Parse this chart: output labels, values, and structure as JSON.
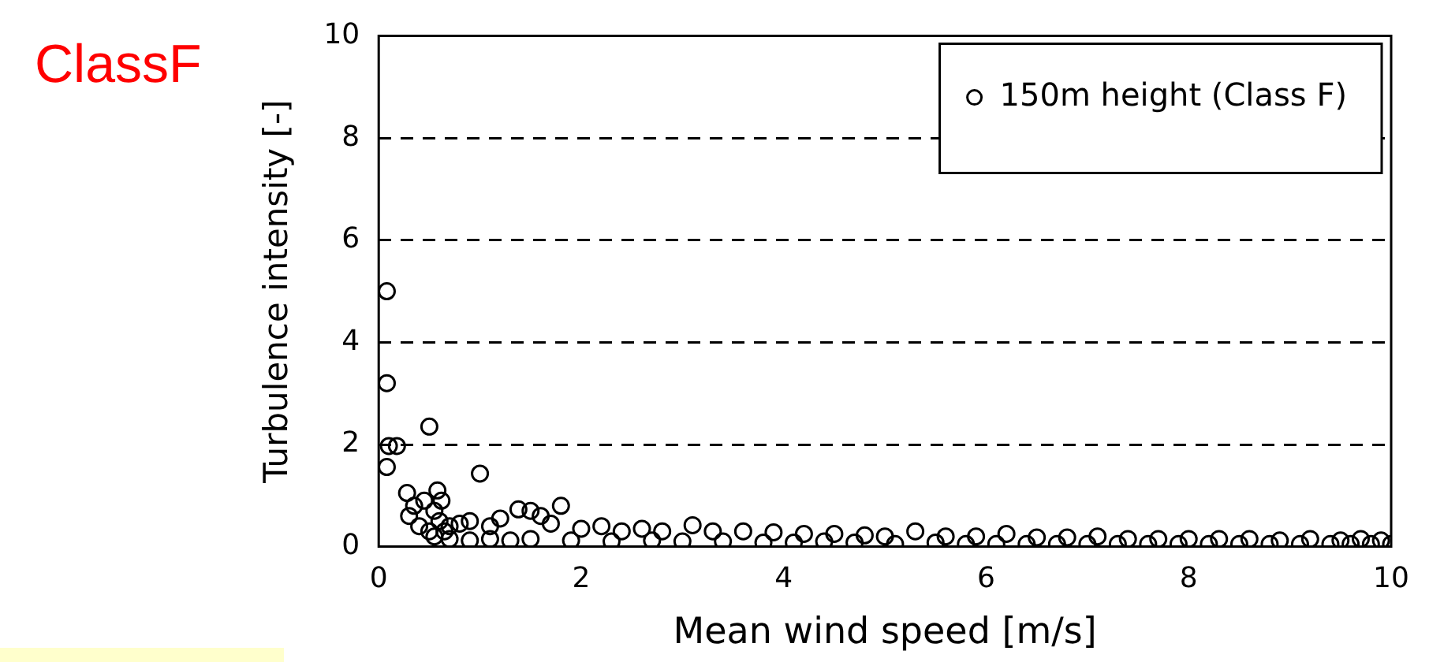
{
  "chart_data": {
    "type": "scatter",
    "title": "ClassF",
    "xlabel": "Mean wind speed [m/s]",
    "ylabel": "Turbulence intensity [-]",
    "xlim": [
      0,
      10
    ],
    "ylim": [
      0,
      10
    ],
    "xticks": [
      0,
      2,
      4,
      6,
      8,
      10
    ],
    "yticks": [
      0,
      2,
      4,
      6,
      8,
      10
    ],
    "grid": "y",
    "legend": "top right",
    "marker": "circle",
    "series": [
      {
        "name": "150m height (Class F)",
        "color": "#000000",
        "x": [
          0.08,
          0.08,
          0.1,
          0.18,
          0.08,
          0.5,
          1.0,
          0.28,
          0.58,
          0.35,
          0.45,
          0.3,
          0.55,
          0.4,
          0.5,
          0.6,
          0.62,
          0.7,
          0.8,
          0.9,
          1.1,
          1.2,
          1.38,
          1.5,
          1.6,
          1.8,
          1.7,
          2.0,
          2.2,
          2.4,
          2.6,
          2.8,
          3.1,
          3.3,
          3.6,
          3.9,
          4.2,
          4.5,
          4.8,
          5.0,
          5.3,
          5.6,
          5.9,
          6.2,
          6.5,
          6.8,
          7.1,
          7.4,
          7.7,
          8.0,
          8.3,
          8.6,
          8.9,
          9.2,
          9.5,
          9.7,
          9.9,
          0.7,
          0.9,
          1.1,
          1.3,
          1.5,
          1.9,
          2.3,
          2.7,
          3.0,
          3.4,
          3.8,
          4.1,
          4.4,
          4.7,
          5.1,
          5.5,
          5.8,
          6.1,
          6.4,
          6.7,
          7.0,
          7.3,
          7.6,
          7.9,
          8.2,
          8.5,
          8.8,
          9.1,
          9.4,
          9.6,
          9.8,
          10.0,
          0.55,
          0.65
        ],
        "values": [
          5.0,
          3.2,
          1.97,
          1.97,
          1.56,
          2.35,
          1.43,
          1.05,
          1.1,
          0.8,
          0.9,
          0.6,
          0.7,
          0.4,
          0.3,
          0.5,
          0.9,
          0.4,
          0.45,
          0.5,
          0.4,
          0.55,
          0.73,
          0.7,
          0.6,
          0.8,
          0.45,
          0.35,
          0.4,
          0.3,
          0.35,
          0.3,
          0.42,
          0.3,
          0.3,
          0.28,
          0.25,
          0.25,
          0.22,
          0.2,
          0.3,
          0.2,
          0.2,
          0.25,
          0.18,
          0.18,
          0.2,
          0.15,
          0.15,
          0.15,
          0.15,
          0.15,
          0.12,
          0.15,
          0.12,
          0.15,
          0.12,
          0.15,
          0.12,
          0.15,
          0.12,
          0.15,
          0.12,
          0.1,
          0.12,
          0.1,
          0.1,
          0.08,
          0.08,
          0.1,
          0.08,
          0.05,
          0.08,
          0.05,
          0.05,
          0.05,
          0.05,
          0.05,
          0.05,
          0.05,
          0.05,
          0.05,
          0.05,
          0.05,
          0.05,
          0.05,
          0.05,
          0.05,
          0.05,
          0.2,
          0.3
        ]
      }
    ]
  }
}
